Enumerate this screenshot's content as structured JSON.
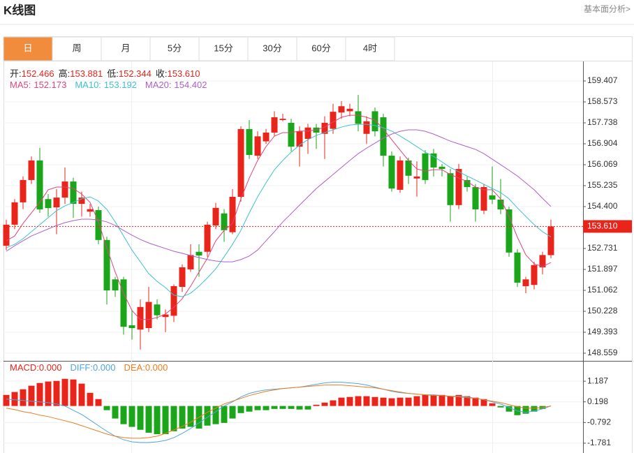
{
  "header": {
    "title": "K线图",
    "link": "基本面分析>"
  },
  "tabs": {
    "items": [
      "日",
      "周",
      "月",
      "5分",
      "15分",
      "30分",
      "60分",
      "4时"
    ],
    "active": 0,
    "active_color": "#f08c3c"
  },
  "chart_data": [
    {
      "type": "candlestick",
      "up_color": "#e8241b",
      "down_color": "#1aa51a",
      "open": [
        152.84,
        153.68,
        154.57,
        155.46,
        156.24,
        154.7,
        154.37,
        154.76,
        155.4,
        154.51,
        154.2,
        154.26,
        153.07,
        151.5,
        151.5,
        149.67,
        149.5,
        149.56,
        150.5,
        150.0,
        150.05,
        151.2,
        151.9,
        152.6,
        152.6,
        153.65,
        154.13,
        153.38,
        154.79,
        157.49,
        156.43,
        157.0,
        157.35,
        157.85,
        157.74,
        156.79,
        157.1,
        157.55,
        157.3,
        157.5,
        158.15,
        158.2,
        158.2,
        157.3,
        158.2,
        157.96,
        156.43,
        155.07,
        156.24,
        155.52,
        156.52,
        156.52,
        155.99,
        155.73,
        154.46,
        155.46,
        155.18,
        154.24,
        154.85,
        154.68,
        154.29,
        152.57,
        151.23,
        151.28,
        151.98,
        152.466
      ],
      "high": [
        153.88,
        154.7,
        155.6,
        156.4,
        156.74,
        154.9,
        155.1,
        155.96,
        155.55,
        155.0,
        154.5,
        154.4,
        153.2,
        151.6,
        151.6,
        150.3,
        150.7,
        151.2,
        150.7,
        150.3,
        151.3,
        152.1,
        152.9,
        152.9,
        153.8,
        154.55,
        154.3,
        155.1,
        157.6,
        157.85,
        157.4,
        157.5,
        158.2,
        158.1,
        157.9,
        157.6,
        157.7,
        157.7,
        158.0,
        158.5,
        158.6,
        158.5,
        158.85,
        158.0,
        158.35,
        158.1,
        156.6,
        156.4,
        156.35,
        156.2,
        156.65,
        156.7,
        156.1,
        155.9,
        156.1,
        155.6,
        155.3,
        155.3,
        156.0,
        155.5,
        154.4,
        152.7,
        151.6,
        152.2,
        152.6,
        153.881
      ],
      "low": [
        152.67,
        153.5,
        154.3,
        155.3,
        154.15,
        154.0,
        153.3,
        154.5,
        153.95,
        154.0,
        154.0,
        152.9,
        150.5,
        150.8,
        149.3,
        149.1,
        148.7,
        149.4,
        149.9,
        149.4,
        149.8,
        151.0,
        151.8,
        151.6,
        152.4,
        153.5,
        153.0,
        153.3,
        154.6,
        156.3,
        156.3,
        156.9,
        157.2,
        157.8,
        156.6,
        156.0,
        156.5,
        156.7,
        156.3,
        157.3,
        157.9,
        158.0,
        157.4,
        156.9,
        157.2,
        156.0,
        155.0,
        154.95,
        155.3,
        154.8,
        155.3,
        155.6,
        155.6,
        153.8,
        154.3,
        155.0,
        153.8,
        154.1,
        154.5,
        154.1,
        152.4,
        151.2,
        150.95,
        151.1,
        151.7,
        152.344
      ],
      "close": [
        153.68,
        154.57,
        155.46,
        156.24,
        154.29,
        154.34,
        154.76,
        155.4,
        154.51,
        154.76,
        154.3,
        153.07,
        151.06,
        151.06,
        149.61,
        149.56,
        150.4,
        150.6,
        150.07,
        150.1,
        151.23,
        151.98,
        152.47,
        152.45,
        153.68,
        154.35,
        153.46,
        154.79,
        157.49,
        156.46,
        157.2,
        157.35,
        157.96,
        157.9,
        156.79,
        157.4,
        157.55,
        157.35,
        157.74,
        158.18,
        158.4,
        158.3,
        157.7,
        157.8,
        157.4,
        156.43,
        155.12,
        156.24,
        155.63,
        155.6,
        155.46,
        155.96,
        155.9,
        154.46,
        155.9,
        155.18,
        154.29,
        155.18,
        154.68,
        154.29,
        152.57,
        151.37,
        151.5,
        152.07,
        152.47,
        153.61
      ],
      "readout": {
        "labels": [
          "开:",
          "高:",
          "低:",
          "收:"
        ],
        "value_labels": [
          "152.466",
          "153.881",
          "152.344",
          "153.610"
        ]
      },
      "series": [
        {
          "name": "MA5:",
          "color": "#e0457b",
          "value_label": "152.173",
          "values": [
            153.04,
            153.23,
            153.73,
            154.15,
            154.57,
            155.07,
            155.18,
            155.18,
            155.12,
            154.9,
            154.57,
            153.79,
            152.76,
            151.79,
            150.95,
            150.26,
            149.9,
            149.9,
            149.98,
            150.12,
            150.39,
            150.73,
            151.23,
            151.79,
            152.34,
            153.04,
            153.45,
            153.73,
            154.71,
            155.54,
            156.24,
            156.79,
            157.21,
            157.35,
            157.35,
            157.41,
            157.41,
            157.46,
            157.57,
            157.77,
            157.96,
            158.04,
            158.04,
            157.96,
            157.85,
            157.49,
            157.07,
            156.65,
            156.24,
            155.9,
            155.82,
            155.87,
            155.87,
            155.68,
            155.54,
            155.4,
            155.18,
            155.07,
            155.07,
            154.71,
            154.01,
            153.18,
            152.48,
            152.12,
            152.01,
            152.173
          ]
        },
        {
          "name": "MA10:",
          "color": "#3ec1d3",
          "value_label": "153.192",
          "values": [
            152.76,
            152.9,
            153.12,
            153.4,
            153.68,
            153.96,
            154.24,
            154.43,
            154.57,
            154.71,
            154.79,
            154.62,
            154.29,
            153.79,
            153.23,
            152.67,
            152.2,
            151.73,
            151.42,
            151.17,
            150.87,
            150.81,
            150.95,
            151.23,
            151.56,
            151.92,
            152.4,
            152.9,
            153.45,
            154.15,
            154.79,
            155.35,
            155.87,
            156.24,
            156.57,
            156.85,
            157.07,
            157.24,
            157.35,
            157.46,
            157.57,
            157.65,
            157.68,
            157.68,
            157.63,
            157.54,
            157.41,
            157.21,
            157.01,
            156.79,
            156.57,
            156.4,
            156.18,
            155.96,
            155.79,
            155.62,
            155.46,
            155.29,
            155.12,
            154.96,
            154.71,
            154.35,
            154.01,
            153.68,
            153.4,
            153.192
          ]
        },
        {
          "name": "MA20:",
          "color": "#b05fc8",
          "value_label": "154.402",
          "values": [
            152.62,
            152.84,
            153.04,
            153.23,
            153.37,
            153.51,
            153.65,
            153.76,
            153.84,
            153.9,
            153.9,
            153.87,
            153.79,
            153.65,
            153.45,
            153.26,
            153.09,
            152.95,
            152.84,
            152.73,
            152.62,
            152.54,
            152.45,
            152.37,
            152.29,
            152.23,
            152.2,
            152.2,
            152.29,
            152.43,
            152.67,
            153.04,
            153.4,
            153.79,
            154.12,
            154.46,
            154.79,
            155.12,
            155.4,
            155.68,
            155.96,
            156.24,
            156.51,
            156.73,
            156.93,
            157.13,
            157.29,
            157.4,
            157.46,
            157.46,
            157.4,
            157.29,
            157.15,
            157.01,
            156.9,
            156.79,
            156.68,
            156.51,
            156.29,
            156.07,
            155.85,
            155.62,
            155.35,
            155.07,
            154.73,
            154.402
          ]
        }
      ],
      "ylim": [
        148.253,
        160.186
      ],
      "yticks": [
        159.407,
        158.573,
        157.738,
        156.904,
        156.069,
        155.235,
        {
          "value": 154.4,
          "label": "154.400"
        },
        152.731,
        151.897,
        151.062,
        150.228,
        149.393,
        148.559
      ],
      "grid": true
    },
    {
      "type": "macd",
      "up_color": "#e8241b",
      "down_color": "#1aa51a",
      "hist": {
        "name": "MACD:",
        "color": "#e8241b",
        "value_label": "0.000",
        "values": [
          0.53,
          0.67,
          0.8,
          0.97,
          1.1,
          1.17,
          1.2,
          1.3,
          1.27,
          1.07,
          0.63,
          0.33,
          -0.2,
          -0.6,
          -0.87,
          -1.0,
          -1.14,
          -1.28,
          -1.35,
          -1.35,
          -1.21,
          -1.08,
          -1.0,
          -1.08,
          -0.94,
          -0.87,
          -0.81,
          -0.6,
          -0.34,
          -0.27,
          -0.2,
          -0.2,
          -0.14,
          -0.14,
          -0.14,
          -0.17,
          -0.17,
          0.06,
          0.16,
          0.27,
          0.4,
          0.43,
          0.47,
          0.47,
          0.43,
          0.4,
          0.37,
          0.4,
          0.4,
          0.47,
          0.53,
          0.53,
          0.53,
          0.47,
          0.53,
          0.47,
          0.4,
          0.33,
          0.13,
          -0.07,
          -0.27,
          -0.44,
          -0.37,
          -0.27,
          -0.14,
          0
        ]
      },
      "series": [
        {
          "name": "DIFF:",
          "color": "#4fa6e0",
          "value_label": "0.000",
          "values": [
            0.332,
            0.299,
            0.265,
            0.232,
            0.198,
            0.164,
            0.097,
            -0.003,
            -0.205,
            -0.406,
            -0.674,
            -0.943,
            -1.211,
            -1.446,
            -1.614,
            -1.715,
            -1.749,
            -1.749,
            -1.715,
            -1.648,
            -1.513,
            -1.312,
            -1.077,
            -0.809,
            -0.54,
            -0.272,
            0,
            0.198,
            0.433,
            0.601,
            0.701,
            0.769,
            0.802,
            0.836,
            0.869,
            0.903,
            0.97,
            1.037,
            1.104,
            1.138,
            1.138,
            1.104,
            1.071,
            1.003,
            0.903,
            0.802,
            0.701,
            0.634,
            0.601,
            0.567,
            0.534,
            0.534,
            0.5,
            0.466,
            0.466,
            0.433,
            0.366,
            0.299,
            0.198,
            0.097,
            -0.07,
            -0.238,
            -0.304,
            -0.238,
            -0.138,
            0
          ]
        },
        {
          "name": "DEA:",
          "color": "#f07c1e",
          "value_label": "0.000",
          "values": [
            -0.104,
            -0.171,
            -0.272,
            -0.339,
            -0.44,
            -0.507,
            -0.607,
            -0.708,
            -0.809,
            -0.943,
            -1.077,
            -1.211,
            -1.346,
            -1.446,
            -1.513,
            -1.547,
            -1.547,
            -1.513,
            -1.446,
            -1.312,
            -1.144,
            -0.976,
            -0.775,
            -0.54,
            -0.304,
            -0.104,
            0.097,
            0.232,
            0.366,
            0.5,
            0.601,
            0.701,
            0.769,
            0.836,
            0.869,
            0.903,
            0.936,
            0.97,
            1.003,
            1.003,
            1.003,
            0.97,
            0.936,
            0.903,
            0.869,
            0.802,
            0.735,
            0.668,
            0.601,
            0.567,
            0.534,
            0.5,
            0.5,
            0.466,
            0.433,
            0.399,
            0.366,
            0.299,
            0.232,
            0.164,
            0.064,
            -0.036,
            -0.104,
            -0.104,
            -0.07,
            0
          ]
        }
      ],
      "ylim": [
        -2.251,
        2.16
      ],
      "yticks": [
        1.187,
        0.198,
        -0.792,
        -1.781
      ],
      "grid": true
    }
  ]
}
